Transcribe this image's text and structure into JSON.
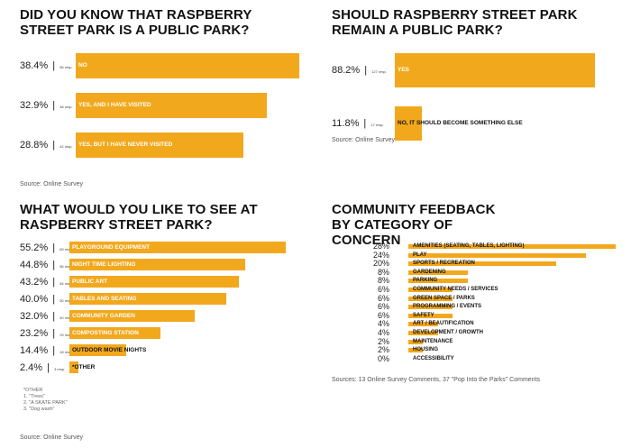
{
  "chart_data": [
    {
      "type": "bar",
      "title": "DID YOU KNOW THAT RASPBERRY STREET PARK IS A PUBLIC PARK?",
      "categories": [
        "NO",
        "YES, AND I HAVE VISITED",
        "YES, BUT I HAVE NEVER VISITED"
      ],
      "values": [
        38.4,
        32.9,
        28.8
      ],
      "value_labels": [
        "38.4%",
        "32.9%",
        "28.8%"
      ],
      "response_labels": [
        "56 resp.",
        "48 resp.",
        "42 resp."
      ],
      "source": "Source: Online Survey"
    },
    {
      "type": "bar",
      "title": "SHOULD RASPBERRY STREET PARK REMAIN A PUBLIC PARK?",
      "categories": [
        "YES",
        "NO, IT SHOULD BECOME SOMETHING ELSE"
      ],
      "values": [
        88.2,
        11.8
      ],
      "value_labels": [
        "88.2%",
        "11.8%"
      ],
      "response_labels": [
        "127 resp.",
        "17 resp."
      ],
      "source": "Source: Online Survey"
    },
    {
      "type": "bar",
      "title": "WHAT WOULD YOU LIKE TO SEE AT RASPBERRY STREET PARK?",
      "categories": [
        "PLAYGROUND EQUIPMENT",
        "NIGHT TIME LIGHTING",
        "PUBLIC ART",
        "TABLES AND SEATING",
        "COMMUNITY GARDEN",
        "COMPOSTING STATION",
        "OUTDOOR MOVIE NIGHTS",
        "*OTHER"
      ],
      "values": [
        55.2,
        44.8,
        43.2,
        40.0,
        32.0,
        23.2,
        14.4,
        2.4
      ],
      "value_labels": [
        "55.2%",
        "44.8%",
        "43.2%",
        "40.0%",
        "32.0%",
        "23.2%",
        "14.4%",
        "2.4%"
      ],
      "response_labels": [
        "69 resp.",
        "56 resp.",
        "54 resp.",
        "50 resp.",
        "40 resp.",
        "29 resp.",
        "18 resp.",
        "3 resp."
      ],
      "notes": [
        "*OTHER",
        "1. \"Trees\"",
        "2. \"A SKATE PARK\"",
        "3. \"Dog wash\""
      ],
      "source": "Source: Online Survey"
    },
    {
      "type": "bar",
      "title": "COMMUNITY FEEDBACK BY CATEGORY OF CONCERN",
      "categories": [
        "AMENITIES (SEATING, TABLES, LIGHTING)",
        "PLAY",
        "SPORTS / RECREATION",
        "GARDENING",
        "PARKING",
        "COMMUNITY NEEDS / SERVICES",
        "GREEN SPACE / PARKS",
        "PROGRAMMING / EVENTS",
        "SAFETY",
        "ART / BEAUTIFICATION",
        "DEVELOPMENT / GROWTH",
        "MAINTENANCE",
        "HOUSING",
        "ACCESSIBILITY"
      ],
      "values": [
        28,
        24,
        20,
        8,
        8,
        6,
        6,
        6,
        6,
        4,
        4,
        2,
        2,
        0
      ],
      "value_labels": [
        "28%",
        "24%",
        "20%",
        "8%",
        "8%",
        "6%",
        "6%",
        "6%",
        "6%",
        "4%",
        "4%",
        "2%",
        "2%",
        "0%"
      ],
      "source": "Sources: 13 Online Survey Comments, 37 \"Pop Into the Parks\" Comments"
    }
  ],
  "colors": {
    "bar": "#f2a81d",
    "label_on_bar": "#ffffff",
    "text": "#111111"
  }
}
